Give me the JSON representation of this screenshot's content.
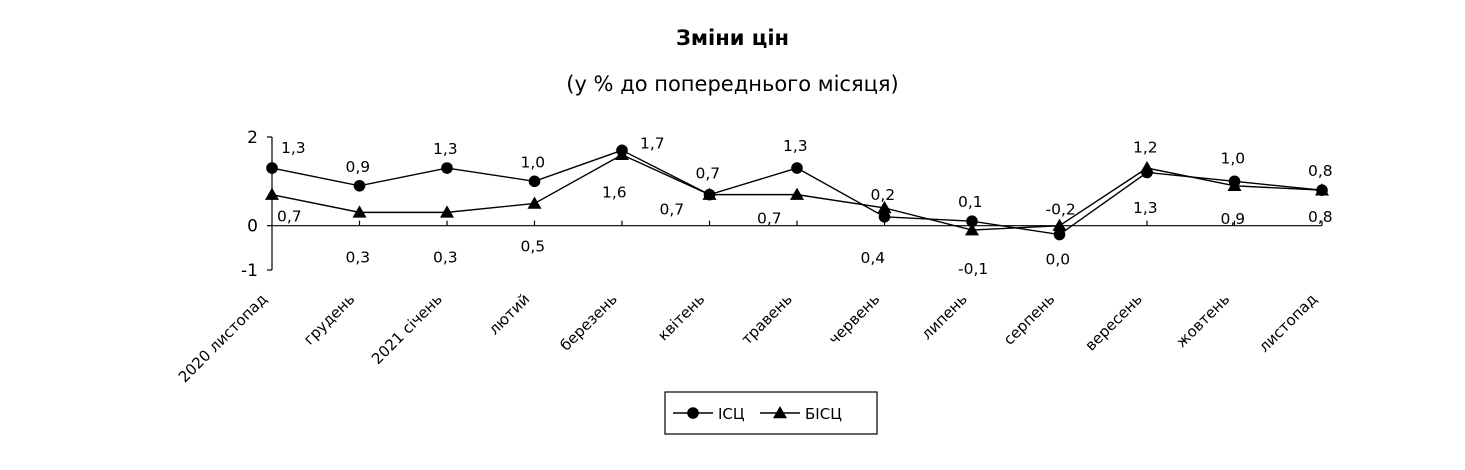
{
  "chart_data": {
    "type": "line",
    "title": "Зміни цін",
    "subtitle": "(у % до попереднього місяця)",
    "categories": [
      "2020 листопад",
      "грудень",
      "2021 січень",
      "лютий",
      "березень",
      "квітень",
      "травень",
      "червень",
      "липень",
      "серпень",
      "вересень",
      "жовтень",
      "листопад"
    ],
    "series": [
      {
        "name": "ІСЦ",
        "marker": "circle",
        "values": [
          1.3,
          0.9,
          1.3,
          1.0,
          1.7,
          0.7,
          1.3,
          0.2,
          0.1,
          -0.2,
          1.2,
          1.0,
          0.8
        ],
        "labels": [
          "1,3",
          "0,9",
          "1,3",
          "1,0",
          "1,7",
          "0,7",
          "1,3",
          "0,2",
          "0,1",
          "-0,2",
          "1,2",
          "1,0",
          "0,8"
        ]
      },
      {
        "name": "БІСЦ",
        "marker": "triangle",
        "values": [
          0.7,
          0.3,
          0.3,
          0.5,
          1.6,
          0.7,
          0.7,
          0.4,
          -0.1,
          0.0,
          1.3,
          0.9,
          0.8
        ],
        "labels": [
          "0,7",
          "0,3",
          "0,3",
          "0,5",
          "1,6",
          "0,7",
          "0,7",
          "0,4",
          "-0,1",
          "0,0",
          "1,3",
          "0,9",
          "0,8"
        ]
      }
    ],
    "ylim": [
      -1,
      2
    ],
    "yticks": [
      -1,
      0,
      2
    ],
    "ytick_labels": [
      "-1",
      "0",
      "2"
    ],
    "grid": false,
    "legend_position": "bottom-center",
    "colors": {
      "line": "#000000",
      "background": "#ffffff"
    }
  }
}
